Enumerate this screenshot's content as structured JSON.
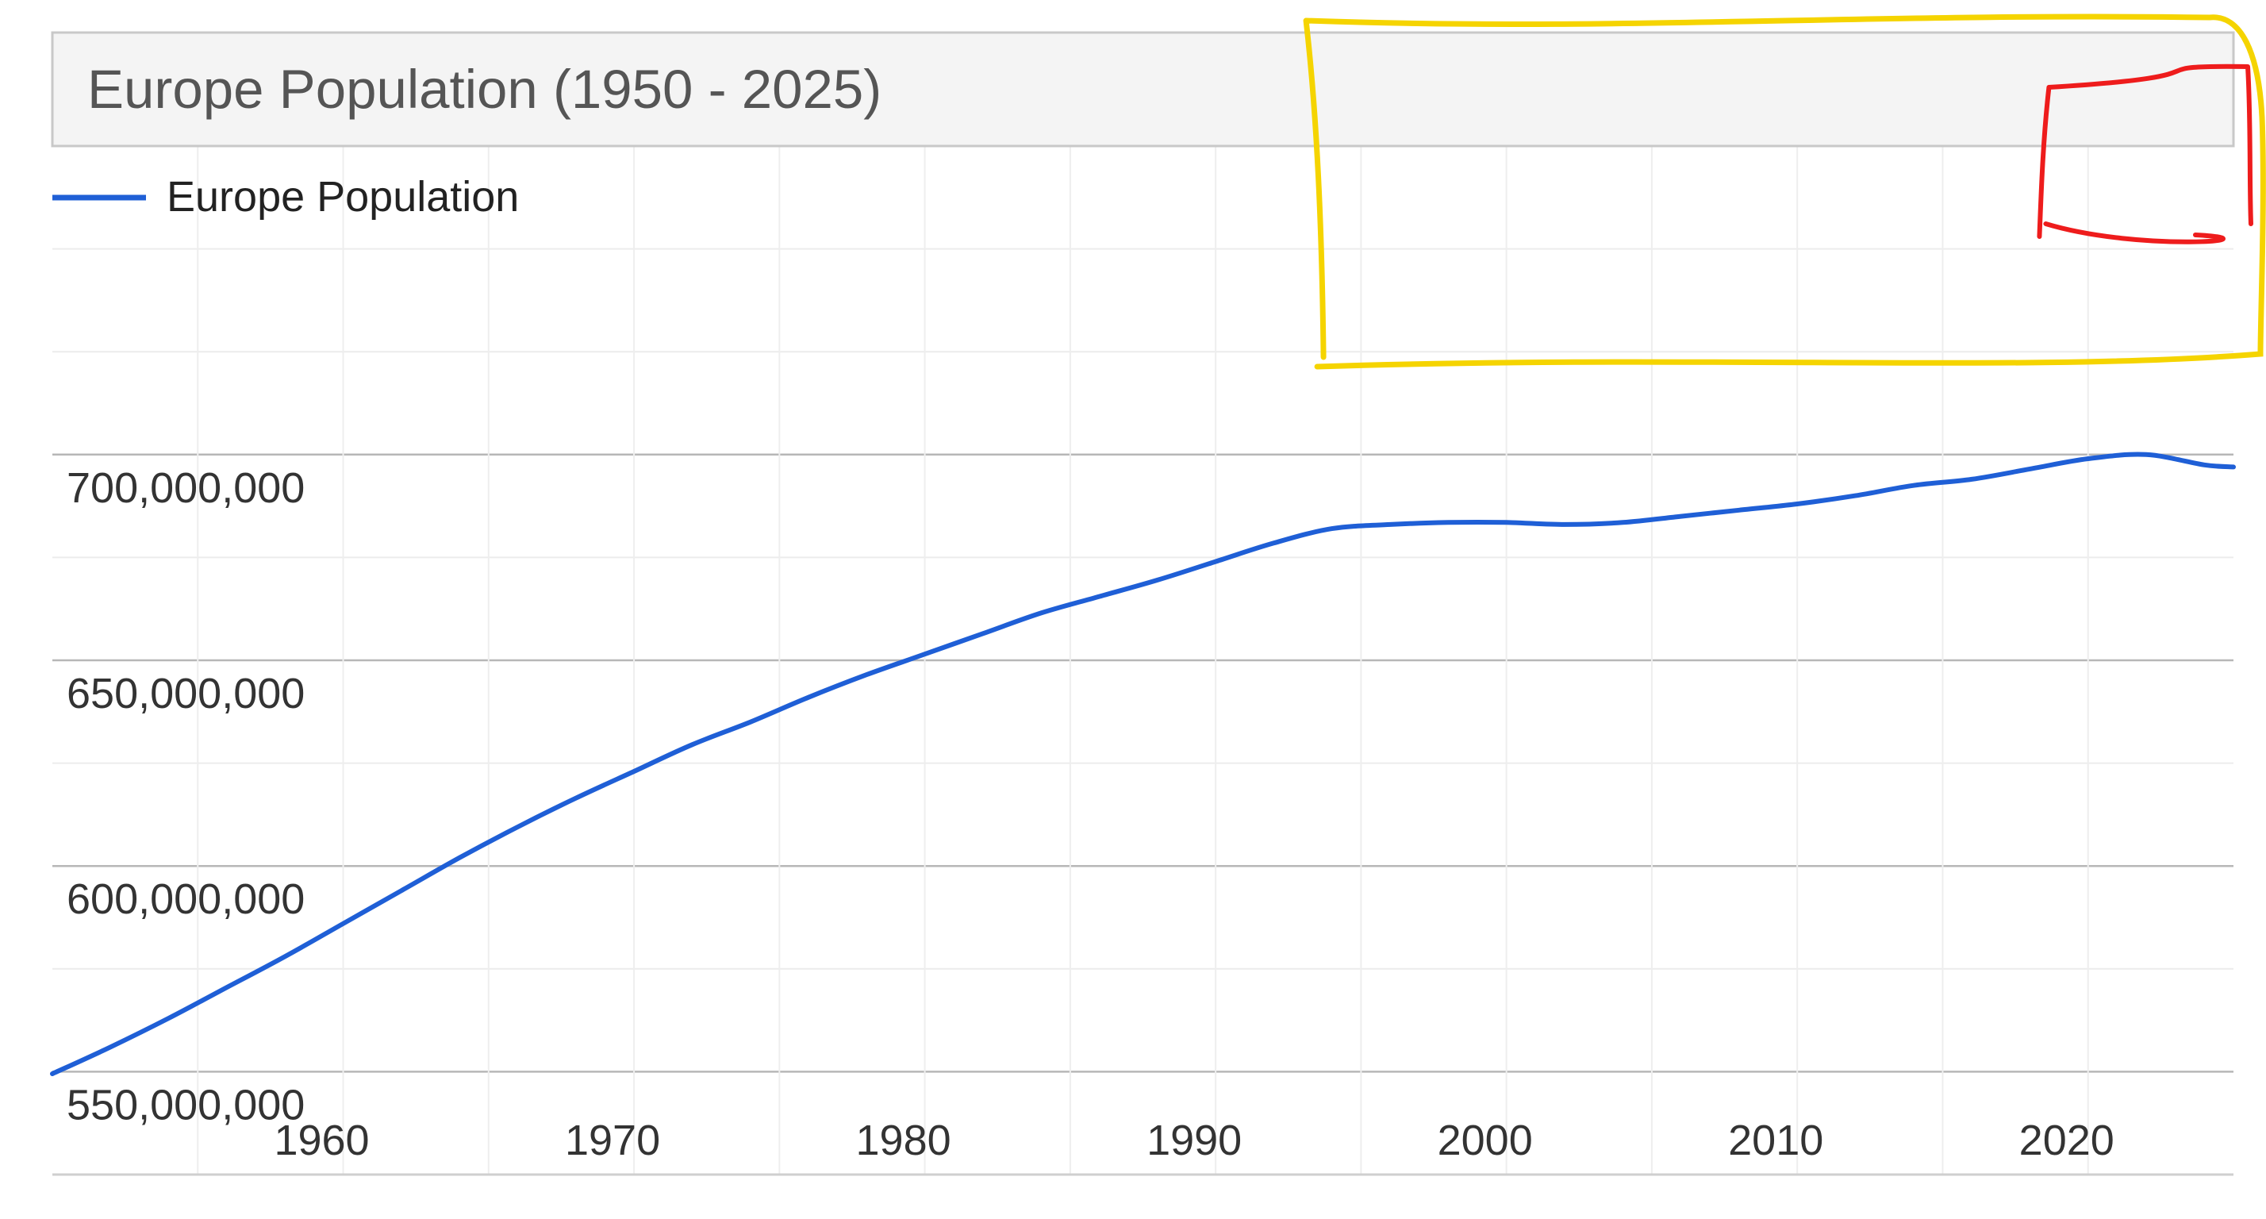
{
  "chart_data": {
    "type": "line",
    "title": "Europe Population (1950 - 2025)",
    "xlabel": "",
    "ylabel": "",
    "xlim": [
      1950,
      2025
    ],
    "ylim": [
      525000000,
      775000000
    ],
    "grid": true,
    "legend_position": "top-left",
    "x_ticks": [
      1960,
      1970,
      1980,
      1990,
      2000,
      2010,
      2020
    ],
    "x_tick_labels": [
      "1960",
      "1970",
      "1980",
      "1990",
      "2000",
      "2010",
      "2020"
    ],
    "y_ticks": [
      550000000,
      600000000,
      650000000,
      700000000
    ],
    "y_tick_labels": [
      "550,000,000",
      "600,000,000",
      "650,000,000",
      "700,000,000"
    ],
    "legend": [
      {
        "label": "Europe Population",
        "color": "#1f5fd6"
      }
    ],
    "series": [
      {
        "name": "Europe Population",
        "color": "#1f5fd6",
        "x": [
          1950,
          1952,
          1954,
          1956,
          1958,
          1960,
          1962,
          1964,
          1966,
          1968,
          1970,
          1972,
          1974,
          1976,
          1978,
          1980,
          1982,
          1984,
          1986,
          1988,
          1990,
          1992,
          1994,
          1996,
          1998,
          2000,
          2002,
          2004,
          2006,
          2008,
          2010,
          2012,
          2014,
          2016,
          2018,
          2020,
          2022,
          2024,
          2025
        ],
        "y": [
          549500000,
          556000000,
          563000000,
          570500000,
          578000000,
          586000000,
          594000000,
          602000000,
          609500000,
          616500000,
          623000000,
          629500000,
          635000000,
          641000000,
          646500000,
          651500000,
          656500000,
          661500000,
          665500000,
          669500000,
          674000000,
          678500000,
          682000000,
          683000000,
          683500000,
          683500000,
          683000000,
          683500000,
          685000000,
          686500000,
          688000000,
          690000000,
          692500000,
          694000000,
          696500000,
          699000000,
          700000000,
          697500000,
          697000000
        ]
      }
    ],
    "annotations": [
      {
        "shape": "freehand-rectangle",
        "color": "#f5d400",
        "range_x": [
          1993,
          2025
        ]
      },
      {
        "shape": "freehand-bracket",
        "color": "#ee1c1c",
        "range_x": [
          2018,
          2025
        ]
      }
    ]
  }
}
